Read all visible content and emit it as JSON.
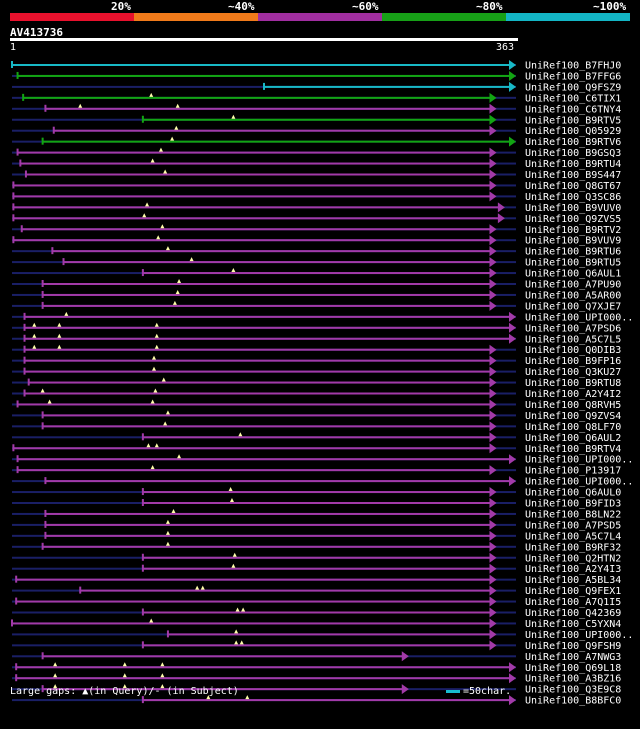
{
  "legend": {
    "segments": [
      {
        "label": "20%",
        "color": "#e8112d"
      },
      {
        "label": "~40%",
        "color": "#f07a1a"
      },
      {
        "label": "~60%",
        "color": "#a12ea0"
      },
      {
        "label": "~80%",
        "color": "#17a017"
      },
      {
        "label": "~100%",
        "color": "#13b5c5"
      }
    ]
  },
  "query": {
    "name": "AV413736",
    "start": "1",
    "end": "363"
  },
  "colors": {
    "teal": "#18b9c6",
    "green": "#12a512",
    "purple": "#a23aa8",
    "navy": "#1a1f66",
    "gap": "#ffffaa"
  },
  "hits": [
    {
      "name": "UniRef100_B7FHJ0",
      "color": "teal",
      "s": 1,
      "e": 363,
      "gaps": []
    },
    {
      "name": "UniRef100_B7FFG6",
      "color": "green",
      "s": 5,
      "e": 363,
      "gaps": []
    },
    {
      "name": "UniRef100_Q9FSZ9",
      "color": "teal",
      "s": 182,
      "e": 363,
      "gaps": []
    },
    {
      "name": "UniRef100_C6TIX1",
      "color": "green",
      "s": 9,
      "e": 349,
      "gaps": [
        101
      ]
    },
    {
      "name": "UniRef100_C6TNY4",
      "color": "purple",
      "s": 25,
      "e": 349,
      "gaps": [
        50,
        120
      ]
    },
    {
      "name": "UniRef100_B9RTV5",
      "color": "green",
      "s": 95,
      "e": 349,
      "gaps": [
        160
      ]
    },
    {
      "name": "UniRef100_Q05929",
      "color": "purple",
      "s": 31,
      "e": 349,
      "gaps": [
        119
      ]
    },
    {
      "name": "UniRef100_B9RTV6",
      "color": "green",
      "s": 23,
      "e": 363,
      "gaps": [
        116
      ]
    },
    {
      "name": "UniRef100_B9GSQ3",
      "color": "purple",
      "s": 5,
      "e": 349,
      "gaps": [
        108
      ]
    },
    {
      "name": "UniRef100_B9RTU4",
      "color": "purple",
      "s": 7,
      "e": 349,
      "gaps": [
        102
      ]
    },
    {
      "name": "UniRef100_B9S447",
      "color": "purple",
      "s": 11,
      "e": 349,
      "gaps": [
        111
      ]
    },
    {
      "name": "UniRef100_Q8GT67",
      "color": "purple",
      "s": 2,
      "e": 349,
      "gaps": []
    },
    {
      "name": "UniRef100_Q3SC86",
      "color": "purple",
      "s": 2,
      "e": 349,
      "gaps": []
    },
    {
      "name": "UniRef100_B9VUV0",
      "color": "purple",
      "s": 2,
      "e": 355,
      "gaps": [
        98
      ]
    },
    {
      "name": "UniRef100_Q9ZVS5",
      "color": "purple",
      "s": 2,
      "e": 355,
      "gaps": [
        96
      ]
    },
    {
      "name": "UniRef100_B9RTV2",
      "color": "purple",
      "s": 8,
      "e": 349,
      "gaps": [
        109
      ]
    },
    {
      "name": "UniRef100_B9VUV9",
      "color": "purple",
      "s": 2,
      "e": 349,
      "gaps": [
        106
      ]
    },
    {
      "name": "UniRef100_B9RTU6",
      "color": "purple",
      "s": 30,
      "e": 349,
      "gaps": [
        113
      ]
    },
    {
      "name": "UniRef100_B9RTU5",
      "color": "purple",
      "s": 38,
      "e": 349,
      "gaps": [
        130
      ]
    },
    {
      "name": "UniRef100_Q6AUL1",
      "color": "purple",
      "s": 95,
      "e": 349,
      "gaps": [
        160
      ]
    },
    {
      "name": "UniRef100_A7PU90",
      "color": "purple",
      "s": 23,
      "e": 349,
      "gaps": [
        121
      ]
    },
    {
      "name": "UniRef100_A5AR00",
      "color": "purple",
      "s": 23,
      "e": 349,
      "gaps": [
        120
      ]
    },
    {
      "name": "UniRef100_Q7XJE7",
      "color": "purple",
      "s": 23,
      "e": 349,
      "gaps": [
        118
      ]
    },
    {
      "name": "UniRef100_UPI000..",
      "color": "purple",
      "s": 10,
      "e": 363,
      "gaps": [
        40
      ]
    },
    {
      "name": "UniRef100_A7PSD6",
      "color": "purple",
      "s": 10,
      "e": 363,
      "gaps": [
        17,
        35,
        105
      ]
    },
    {
      "name": "UniRef100_A5C7L5",
      "color": "purple",
      "s": 10,
      "e": 363,
      "gaps": [
        17,
        35,
        105
      ]
    },
    {
      "name": "UniRef100_Q0DIB3",
      "color": "purple",
      "s": 10,
      "e": 349,
      "gaps": [
        17,
        35,
        105
      ]
    },
    {
      "name": "UniRef100_B9FP16",
      "color": "purple",
      "s": 10,
      "e": 349,
      "gaps": [
        103
      ]
    },
    {
      "name": "UniRef100_Q3KU27",
      "color": "purple",
      "s": 10,
      "e": 349,
      "gaps": [
        103
      ]
    },
    {
      "name": "UniRef100_B9RTU8",
      "color": "purple",
      "s": 13,
      "e": 349,
      "gaps": [
        110
      ]
    },
    {
      "name": "UniRef100_A2Y4I2",
      "color": "purple",
      "s": 10,
      "e": 349,
      "gaps": [
        23,
        104
      ]
    },
    {
      "name": "UniRef100_Q8RVH5",
      "color": "purple",
      "s": 5,
      "e": 349,
      "gaps": [
        28,
        102
      ]
    },
    {
      "name": "UniRef100_Q9ZVS4",
      "color": "purple",
      "s": 23,
      "e": 349,
      "gaps": [
        113
      ]
    },
    {
      "name": "UniRef100_Q8LF70",
      "color": "purple",
      "s": 23,
      "e": 349,
      "gaps": [
        111
      ]
    },
    {
      "name": "UniRef100_Q6AUL2",
      "color": "purple",
      "s": 95,
      "e": 349,
      "gaps": [
        165
      ]
    },
    {
      "name": "UniRef100_B9RTV4",
      "color": "purple",
      "s": 2,
      "e": 349,
      "gaps": [
        99,
        105
      ]
    },
    {
      "name": "UniRef100_UPI000..",
      "color": "purple",
      "s": 5,
      "e": 363,
      "gaps": [
        121
      ]
    },
    {
      "name": "UniRef100_P13917",
      "color": "purple",
      "s": 5,
      "e": 349,
      "gaps": [
        102
      ]
    },
    {
      "name": "UniRef100_UPI000..",
      "color": "purple",
      "s": 25,
      "e": 363,
      "gaps": []
    },
    {
      "name": "UniRef100_Q6AUL0",
      "color": "purple",
      "s": 95,
      "e": 349,
      "gaps": [
        158
      ]
    },
    {
      "name": "UniRef100_B9FID3",
      "color": "purple",
      "s": 95,
      "e": 349,
      "gaps": [
        159
      ]
    },
    {
      "name": "UniRef100_B8LN22",
      "color": "purple",
      "s": 25,
      "e": 349,
      "gaps": [
        117
      ]
    },
    {
      "name": "UniRef100_A7PSD5",
      "color": "purple",
      "s": 25,
      "e": 349,
      "gaps": [
        113
      ]
    },
    {
      "name": "UniRef100_A5C7L4",
      "color": "purple",
      "s": 25,
      "e": 349,
      "gaps": [
        113
      ]
    },
    {
      "name": "UniRef100_B9RF32",
      "color": "purple",
      "s": 23,
      "e": 349,
      "gaps": [
        113
      ]
    },
    {
      "name": "UniRef100_Q2HTN2",
      "color": "purple",
      "s": 95,
      "e": 349,
      "gaps": [
        161
      ]
    },
    {
      "name": "UniRef100_A2Y4I3",
      "color": "purple",
      "s": 95,
      "e": 349,
      "gaps": [
        160
      ]
    },
    {
      "name": "UniRef100_A5BL34",
      "color": "purple",
      "s": 4,
      "e": 349,
      "gaps": []
    },
    {
      "name": "UniRef100_Q9FEX1",
      "color": "purple",
      "s": 50,
      "e": 349,
      "gaps": [
        134,
        138
      ]
    },
    {
      "name": "UniRef100_A7Q1I5",
      "color": "purple",
      "s": 4,
      "e": 349,
      "gaps": []
    },
    {
      "name": "UniRef100_Q42369",
      "color": "purple",
      "s": 95,
      "e": 349,
      "gaps": [
        163,
        167
      ]
    },
    {
      "name": "UniRef100_C5YXN4",
      "color": "purple",
      "s": 1,
      "e": 349,
      "gaps": [
        101
      ]
    },
    {
      "name": "UniRef100_UPI000..",
      "color": "purple",
      "s": 113,
      "e": 349,
      "gaps": [
        162
      ]
    },
    {
      "name": "UniRef100_Q9FSH9",
      "color": "purple",
      "s": 95,
      "e": 349,
      "gaps": [
        162,
        166
      ]
    },
    {
      "name": "UniRef100_A7NWG3",
      "color": "purple",
      "s": 23,
      "e": 286,
      "gaps": []
    },
    {
      "name": "UniRef100_Q69L18",
      "color": "purple",
      "s": 4,
      "e": 363,
      "gaps": [
        32,
        82,
        109
      ]
    },
    {
      "name": "UniRef100_A3BZ16",
      "color": "purple",
      "s": 4,
      "e": 363,
      "gaps": [
        32,
        82,
        109
      ]
    },
    {
      "name": "UniRef100_Q3E9C8",
      "color": "purple",
      "s": 23,
      "e": 286,
      "gaps": [
        32,
        82,
        109
      ]
    },
    {
      "name": "UniRef100_B8BFC0",
      "color": "purple",
      "s": 95,
      "e": 363,
      "gaps": [
        142,
        170
      ]
    }
  ],
  "footer": {
    "text": "Large gaps: ▲(in Query)/- (in Subject)",
    "scale": "=50char."
  }
}
